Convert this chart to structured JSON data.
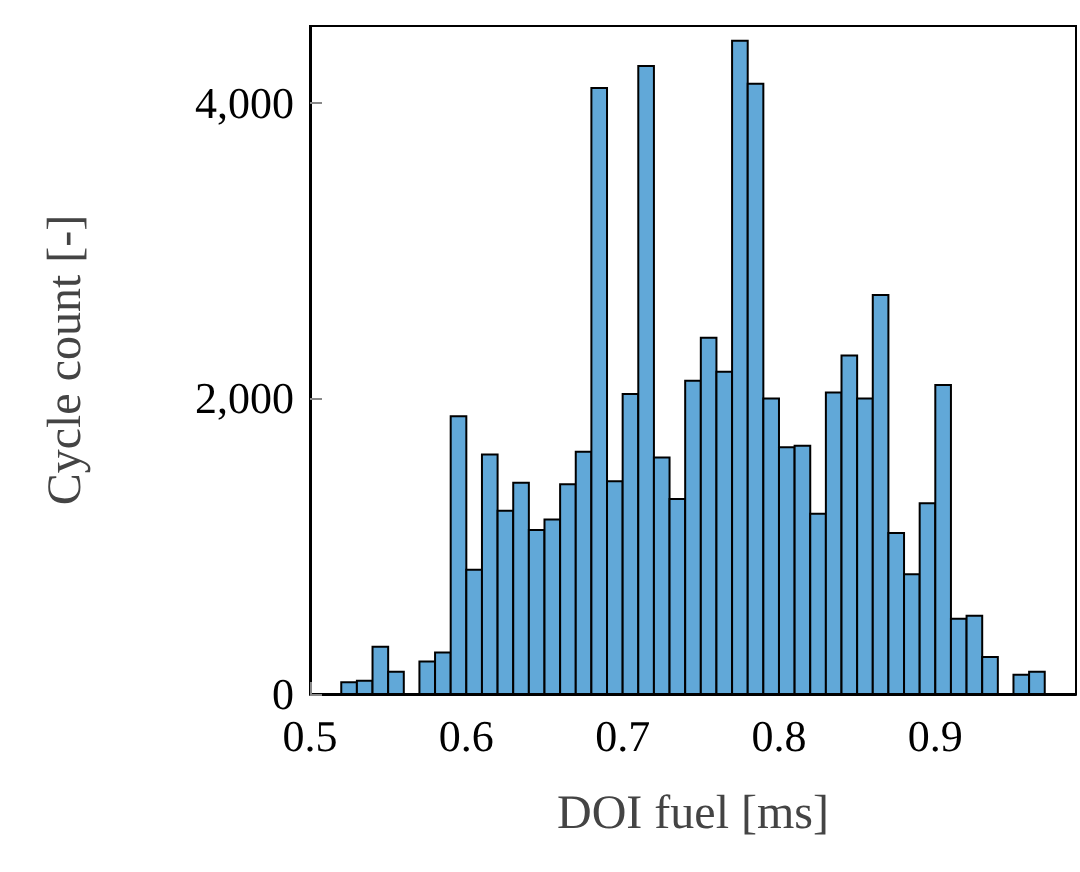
{
  "chart_data": {
    "type": "histogram",
    "xlabel": "DOI fuel [ms]",
    "ylabel": "Cycle count [-]",
    "color": "#61a8d8",
    "bins": [
      0.52,
      0.53,
      0.54,
      0.55,
      0.56,
      0.57,
      0.58,
      0.59,
      0.6,
      0.61,
      0.62,
      0.63,
      0.64,
      0.65,
      0.66,
      0.67,
      0.68,
      0.69,
      0.7,
      0.71,
      0.72,
      0.73,
      0.74,
      0.75,
      0.76,
      0.77,
      0.78,
      0.79,
      0.8,
      0.81,
      0.82,
      0.83,
      0.84,
      0.85,
      0.86,
      0.87,
      0.88,
      0.89,
      0.9,
      0.91,
      0.92,
      0.93,
      0.94,
      0.95,
      0.96,
      0.97
    ],
    "values": [
      80,
      90,
      320,
      150,
      0,
      220,
      280,
      1880,
      840,
      1620,
      1240,
      1430,
      1110,
      1180,
      1420,
      1640,
      4100,
      1440,
      2030,
      4250,
      1600,
      1320,
      2120,
      2410,
      2180,
      4420,
      4130,
      2000,
      1670,
      1680,
      1220,
      2040,
      2290,
      2000,
      2700,
      1090,
      810,
      1290,
      2090,
      510,
      530,
      250,
      0,
      130,
      150
    ],
    "xlim": [
      0.5,
      0.99
    ],
    "xticks": [
      0.5,
      0.6,
      0.7,
      0.8,
      0.9
    ],
    "ylim": [
      0,
      4520
    ],
    "yticks": [
      0,
      {
        "value": 2000,
        "label": "2,000"
      },
      {
        "value": 4000,
        "label": "4,000"
      }
    ]
  }
}
